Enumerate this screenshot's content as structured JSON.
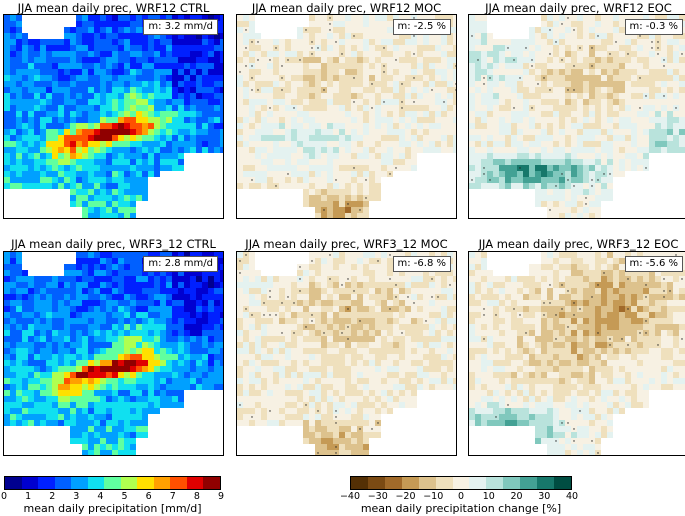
{
  "panels": [
    {
      "title": "JJA mean daily prec, WRF12 CTRL",
      "stat": "m: 3.2 mm/d",
      "kind": "abs"
    },
    {
      "title": "JJA mean daily prec, WRF12 MOC",
      "stat": "m: -2.5 %",
      "kind": "moc1"
    },
    {
      "title": "JJA mean daily prec, WRF12 EOC",
      "stat": "m: -0.3 %",
      "kind": "eoc1"
    },
    {
      "title": "JJA mean daily prec, WRF3_12 CTRL",
      "stat": "m: 2.8 mm/d",
      "kind": "abs"
    },
    {
      "title": "JJA mean daily prec, WRF3_12 MOC",
      "stat": "m: -6.8 %",
      "kind": "moc2"
    },
    {
      "title": "JJA mean daily prec, WRF3_12 EOC",
      "stat": "m: -5.6 %",
      "kind": "eoc2"
    }
  ],
  "colorbar_abs": {
    "label": "mean daily precipitation [mm/d]",
    "ticks": [
      "0",
      "1",
      "2",
      "3",
      "4",
      "5",
      "6",
      "7",
      "8",
      "9"
    ],
    "colors": [
      "#00008f",
      "#0000d0",
      "#0020ff",
      "#0060ff",
      "#00a0ff",
      "#10e0f0",
      "#60ffa0",
      "#b0ff50",
      "#ffe000",
      "#ffa000",
      "#ff5000",
      "#e00000",
      "#900000"
    ]
  },
  "colorbar_change": {
    "label": "mean daily precipitation change [%]",
    "ticks": [
      "−40",
      "−30",
      "−20",
      "−10",
      "0",
      "10",
      "20",
      "30",
      "40"
    ],
    "colors": [
      "#543005",
      "#7b4a13",
      "#a16a2a",
      "#c59a55",
      "#ddc28d",
      "#efe0bd",
      "#f7f1e3",
      "#e4f2f0",
      "#b9e3dc",
      "#80c8bd",
      "#43a194",
      "#17786b",
      "#004d42"
    ]
  }
}
